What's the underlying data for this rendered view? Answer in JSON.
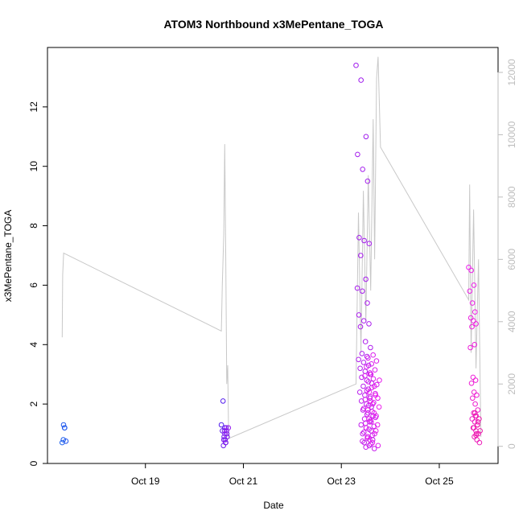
{
  "chart_data": {
    "type": "scatter",
    "title": "ATOM3 Northbound x3MePentane_TOGA",
    "xlabel": "Date",
    "ylabel": "x3MePentane_TOGA",
    "x_ticks": [
      "Oct 19",
      "Oct 21",
      "Oct 23",
      "Oct 25"
    ],
    "x_tick_days": [
      19,
      21,
      23,
      25
    ],
    "xlim_days": [
      17.0,
      26.2
    ],
    "ylim": [
      0,
      14.0
    ],
    "y_ticks": [
      0,
      2,
      4,
      6,
      8,
      10,
      12
    ],
    "y2_ticks": [
      0,
      2000,
      4000,
      6000,
      8000,
      10000,
      12000
    ],
    "y2lim": [
      -550,
      12800
    ],
    "colors": {
      "early_points": "#2a62e8",
      "late_points": "#ee22ee",
      "altitude_line": "#c8c8c8",
      "right_axis": "#bdbdbd"
    },
    "point_clusters": [
      {
        "day_start": 17.3,
        "day_end": 17.38,
        "hue_start": 220,
        "hue_end": 225,
        "values": [
          0.7,
          0.8,
          1.2,
          1.3,
          1.2,
          0.75
        ]
      },
      {
        "day_start": 20.55,
        "day_end": 20.7,
        "hue_start": 255,
        "hue_end": 275,
        "values": [
          1.3,
          2.1,
          1.2,
          1.1,
          0.9,
          0.7,
          0.6,
          0.8,
          1.0,
          1.1,
          1.2,
          0.8,
          0.7,
          0.9,
          1.0,
          1.1,
          1.2
        ]
      },
      {
        "day_start": 23.3,
        "day_end": 23.8,
        "hue_start": 278,
        "hue_end": 300,
        "values": [
          13.4,
          12.9,
          11.0,
          10.4,
          9.9,
          9.5,
          7.6,
          7.5,
          7.4,
          7.0,
          6.2,
          5.9,
          5.8,
          5.4,
          5.0,
          4.8,
          4.7,
          4.6,
          4.1,
          3.9,
          3.7,
          3.6,
          3.5,
          3.4,
          3.3,
          3.2,
          3.1,
          3.0,
          2.9,
          2.8,
          2.7,
          2.6,
          2.5,
          2.4,
          2.3,
          2.2,
          2.1,
          2.0,
          1.9,
          1.8,
          1.7,
          1.6,
          1.5,
          1.4,
          1.3,
          1.2,
          1.1,
          1.0,
          0.9,
          0.8,
          0.7,
          0.6,
          0.5,
          0.55,
          0.65,
          0.75,
          0.85,
          0.95,
          1.05,
          1.15,
          1.25,
          1.35,
          1.45,
          1.55,
          1.65,
          1.75,
          1.85,
          1.95,
          2.05,
          2.15,
          2.25,
          2.35,
          2.45,
          2.55,
          2.65,
          2.75,
          2.85,
          2.95,
          3.05,
          3.15,
          3.25,
          3.35,
          3.45,
          3.55,
          3.65,
          0.6,
          0.8,
          1.0,
          1.2,
          1.4,
          1.6,
          1.8,
          2.0,
          2.2,
          2.4,
          2.6,
          2.8,
          3.0,
          1.1,
          0.9,
          0.7,
          1.3,
          1.5,
          1.7,
          1.9,
          2.1,
          2.3
        ]
      },
      {
        "day_start": 25.6,
        "day_end": 25.85,
        "hue_start": 300,
        "hue_end": 320,
        "values": [
          6.6,
          6.5,
          6.0,
          5.8,
          5.4,
          5.1,
          4.9,
          4.8,
          4.7,
          4.6,
          4.0,
          3.9,
          2.9,
          2.8,
          2.7,
          2.4,
          2.3,
          2.2,
          2.0,
          1.8,
          1.7,
          1.6,
          1.5,
          1.4,
          1.3,
          1.2,
          1.1,
          1.0,
          0.9,
          0.8,
          0.7,
          1.6,
          1.4,
          1.2,
          1.0,
          1.5,
          1.7,
          1.3,
          1.1,
          0.95
        ]
      }
    ],
    "altitude_series": [
      {
        "day": 17.3,
        "alt": 3500
      },
      {
        "day": 17.31,
        "alt": 5500
      },
      {
        "day": 17.33,
        "alt": 6200
      },
      {
        "day": 20.55,
        "alt": 3700
      },
      {
        "day": 20.57,
        "alt": 5200
      },
      {
        "day": 20.6,
        "alt": 6800
      },
      {
        "day": 20.62,
        "alt": 9700
      },
      {
        "day": 20.64,
        "alt": 6000
      },
      {
        "day": 20.66,
        "alt": 2000
      },
      {
        "day": 20.68,
        "alt": 2600
      },
      {
        "day": 20.7,
        "alt": 250
      },
      {
        "day": 23.3,
        "alt": 2000
      },
      {
        "day": 23.35,
        "alt": 7500
      },
      {
        "day": 23.4,
        "alt": 3000
      },
      {
        "day": 23.45,
        "alt": 8200
      },
      {
        "day": 23.5,
        "alt": 4000
      },
      {
        "day": 23.55,
        "alt": 8700
      },
      {
        "day": 23.6,
        "alt": 5000
      },
      {
        "day": 23.65,
        "alt": 10500
      },
      {
        "day": 23.68,
        "alt": 6000
      },
      {
        "day": 23.72,
        "alt": 11800
      },
      {
        "day": 23.75,
        "alt": 12500
      },
      {
        "day": 23.8,
        "alt": 9600
      },
      {
        "day": 25.6,
        "alt": 4700
      },
      {
        "day": 25.62,
        "alt": 8400
      },
      {
        "day": 25.65,
        "alt": 3000
      },
      {
        "day": 25.7,
        "alt": 7600
      },
      {
        "day": 25.75,
        "alt": 2500
      },
      {
        "day": 25.8,
        "alt": 6000
      },
      {
        "day": 25.85,
        "alt": 300
      }
    ]
  }
}
